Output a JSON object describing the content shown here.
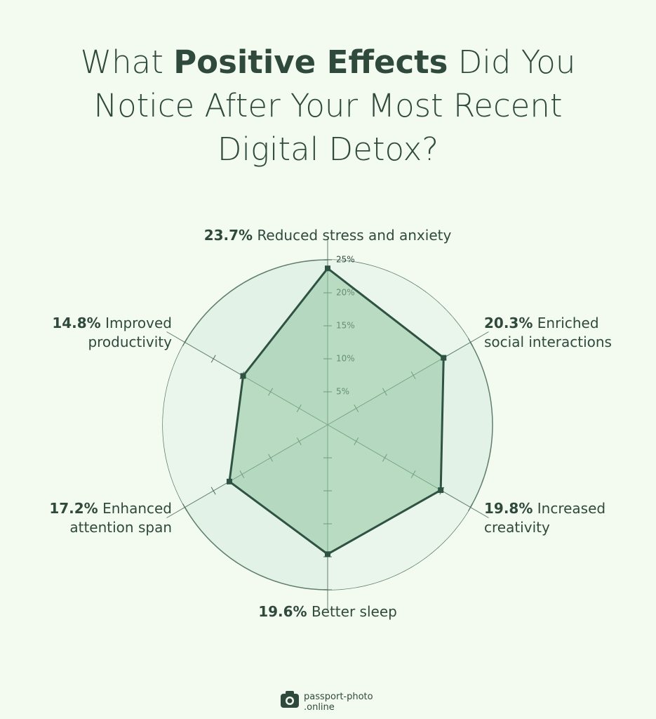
{
  "chart_data": {
    "type": "radar",
    "title": {
      "before": "What",
      "bold": "Positive Effects",
      "after": "Did You Notice After Your Most Recent Digital Detox?"
    },
    "categories": [
      "Reduced stress and anxiety",
      "Enriched social interactions",
      "Increased creativity",
      "Better sleep",
      "Enhanced attention span",
      "Improved productivity"
    ],
    "values": [
      23.7,
      20.3,
      19.8,
      19.6,
      17.2,
      14.8
    ],
    "value_labels": [
      "23.7%",
      "20.3%",
      "19.8%",
      "19.6%",
      "17.2%",
      "14.8%"
    ],
    "rlim": [
      0,
      25
    ],
    "rticks": [
      {
        "value": 5,
        "label": "5%"
      },
      {
        "value": 10,
        "label": "10%"
      },
      {
        "value": 15,
        "label": "15%"
      },
      {
        "value": 20,
        "label": "20%"
      },
      {
        "value": 25,
        "label": "25%"
      }
    ],
    "color": "#2f5342"
  },
  "brand": {
    "name": "passport-photo",
    "domain": ".online"
  }
}
